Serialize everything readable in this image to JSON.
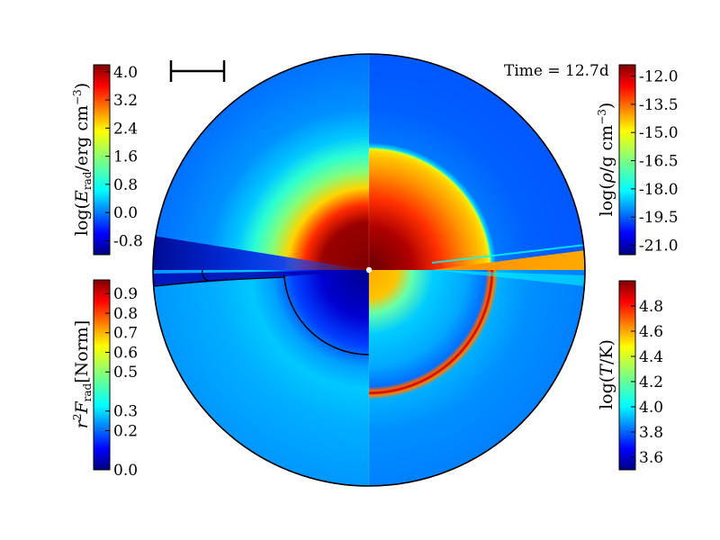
{
  "chart_data": {
    "type": "heatmap",
    "annotation": "Time = 12.7d",
    "colormap": "jet",
    "quadrants": [
      {
        "position": "top-left",
        "quantity": "log(E_rad / erg cm^-3)"
      },
      {
        "position": "top-right",
        "quantity": "log(rho / g cm^-3)"
      },
      {
        "position": "bottom-left",
        "quantity": "r^2 F_rad [Norm]"
      },
      {
        "position": "bottom-right",
        "quantity": "log(T / K)"
      }
    ],
    "colorbars": {
      "erad": {
        "label_main": "log(",
        "label_sym": "E",
        "label_sub": "rad",
        "label_unit": "/erg cm",
        "label_exp": "−3",
        "label_close": ")",
        "ticks": [
          "4.0",
          "3.2",
          "2.4",
          "1.6",
          "0.8",
          "0.0",
          "-0.8"
        ],
        "range": [
          -1.2,
          4.2
        ]
      },
      "rho": {
        "label_main": "log(",
        "label_sym": "ρ",
        "label_unit": "/g cm",
        "label_exp": "−3",
        "label_close": ")",
        "ticks": [
          "-12.0",
          "-13.5",
          "-15.0",
          "-16.5",
          "-18.0",
          "-19.5",
          "-21.0"
        ],
        "range": [
          -21.5,
          -11.4
        ]
      },
      "flux": {
        "label_r": "r",
        "label_exp": "2",
        "label_F": "F",
        "label_sub": "rad",
        "label_norm": "[Norm]",
        "ticks": [
          "0.9",
          "0.8",
          "0.7",
          "0.6",
          "0.5",
          "0.3",
          "0.2",
          "0.0"
        ],
        "range": [
          0.0,
          0.97
        ]
      },
      "temp": {
        "label_main": "log(",
        "label_sym": "T",
        "label_unit": "/K",
        "label_close": ")",
        "ticks": [
          "4.8",
          "4.6",
          "4.4",
          "4.2",
          "4.0",
          "3.8",
          "3.6"
        ],
        "range": [
          3.5,
          5.0
        ]
      }
    },
    "jet_colors": [
      "#00007f",
      "#0000ff",
      "#007fff",
      "#00ffff",
      "#7fff7f",
      "#ffff00",
      "#ff7f00",
      "#ff0000",
      "#7f0000"
    ]
  }
}
